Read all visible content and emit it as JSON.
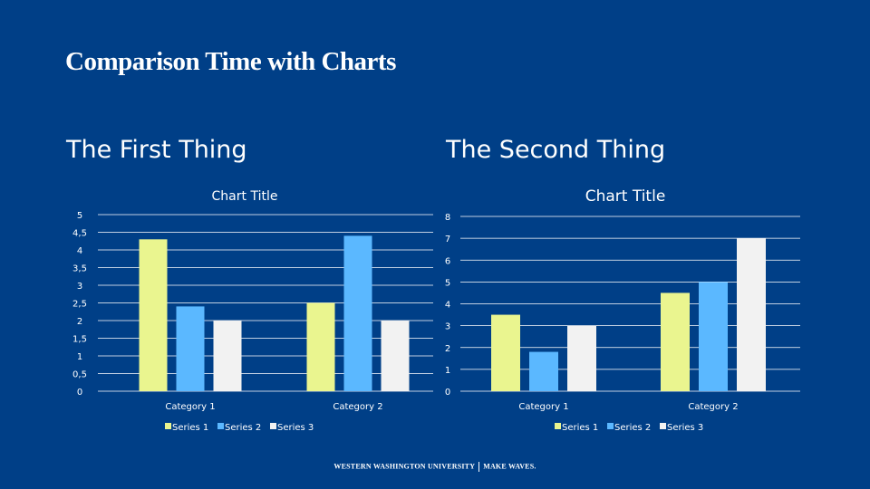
{
  "slide": {
    "title": "Comparison Time with Charts",
    "left_heading": "The First Thing",
    "right_heading": "The Second Thing",
    "footer_left": "WESTERN WASHINGTON UNIVERSITY",
    "footer_right": "MAKE WAVES."
  },
  "colors": {
    "background": "#003f87",
    "series1": "#eaf58f",
    "series2": "#5bb8ff",
    "series3": "#f2f2f2",
    "gridline": "#ffffff"
  },
  "chart_data": [
    {
      "type": "bar",
      "title": "Chart Title",
      "categories": [
        "Category 1",
        "Category 2"
      ],
      "series": [
        {
          "name": "Series 1",
          "values": [
            4.3,
            2.5
          ]
        },
        {
          "name": "Series 2",
          "values": [
            2.4,
            4.4
          ]
        },
        {
          "name": "Series 3",
          "values": [
            2,
            2
          ]
        }
      ],
      "ylim": [
        0,
        5
      ],
      "yticks": [
        "0",
        "0,5",
        "1",
        "1,5",
        "2",
        "2,5",
        "3",
        "3,5",
        "4",
        "4,5",
        "5"
      ],
      "grid": true,
      "legend": "bottom"
    },
    {
      "type": "bar",
      "title": "Chart Title",
      "categories": [
        "Category 1",
        "Category 2"
      ],
      "series": [
        {
          "name": "Series 1",
          "values": [
            3.5,
            4.5
          ]
        },
        {
          "name": "Series 2",
          "values": [
            1.8,
            5
          ]
        },
        {
          "name": "Series 3",
          "values": [
            3,
            7
          ]
        }
      ],
      "ylim": [
        0,
        8
      ],
      "yticks": [
        "0",
        "1",
        "2",
        "3",
        "4",
        "5",
        "6",
        "7",
        "8"
      ],
      "grid": true,
      "legend": "bottom"
    }
  ]
}
